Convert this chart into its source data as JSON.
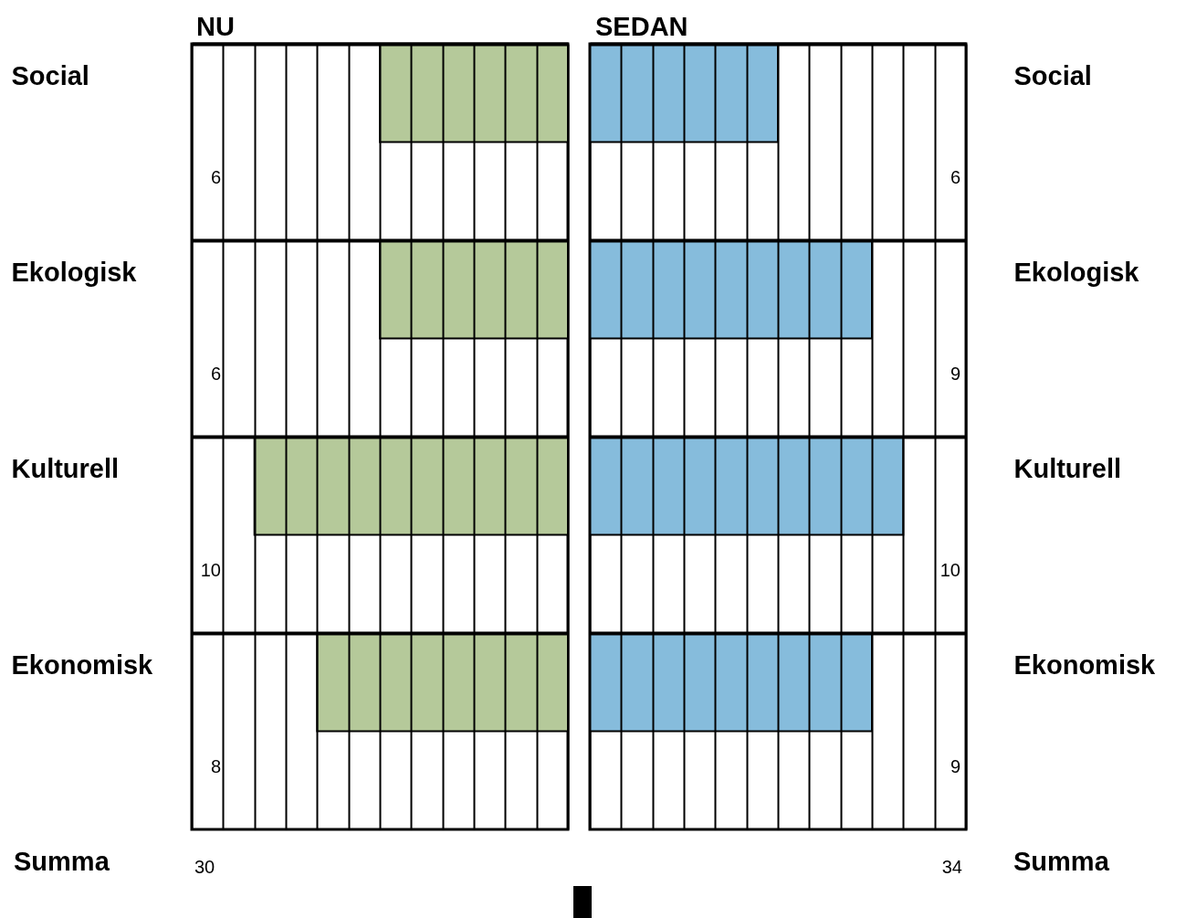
{
  "chart_data": [
    {
      "type": "bar",
      "orientation": "horizontal",
      "title": "NU",
      "categories": [
        "Social",
        "Ekologisk",
        "Kulturell",
        "Ekonomisk"
      ],
      "values": [
        6,
        6,
        10,
        8
      ],
      "color": "#b5c99a",
      "xlim": [
        12,
        0
      ],
      "xticks": [
        {
          "value": 12,
          "label": null
        },
        {
          "value": 11,
          "label": null
        },
        {
          "value": 10,
          "label": null
        },
        {
          "value": 9,
          "label": null
        },
        {
          "value": 8,
          "label": null
        },
        {
          "value": 7,
          "label": null
        },
        {
          "value": 6,
          "label": null
        },
        {
          "value": 5,
          "label": null
        },
        {
          "value": 4,
          "label": null
        },
        {
          "value": 3,
          "label": null
        },
        {
          "value": 2,
          "label": null
        },
        {
          "value": 1,
          "label": null
        },
        {
          "value": 0,
          "label": null
        }
      ],
      "tick_labels": "y",
      "grid": true,
      "data_labels": true,
      "annotations": [
        "Summa",
        "30"
      ]
    },
    {
      "type": "bar",
      "orientation": "horizontal",
      "title": "SEDAN",
      "categories": [
        "Social",
        "Ekologisk",
        "Kulturell",
        "Ekonomisk"
      ],
      "values": [
        6,
        9,
        10,
        9
      ],
      "color": "#86bcdc",
      "xlim": [
        0,
        12
      ],
      "xticks": [
        {
          "value": 0,
          "label": null
        },
        {
          "value": 1,
          "label": null
        },
        {
          "value": 2,
          "label": null
        },
        {
          "value": 3,
          "label": null
        },
        {
          "value": 4,
          "label": null
        },
        {
          "value": 5,
          "label": null
        },
        {
          "value": 6,
          "label": null
        },
        {
          "value": 7,
          "label": null
        },
        {
          "value": 8,
          "label": null
        },
        {
          "value": 9,
          "label": null
        },
        {
          "value": 10,
          "label": null
        },
        {
          "value": 11,
          "label": null
        },
        {
          "value": 12,
          "label": null
        }
      ],
      "tick_labels": "y",
      "grid": true,
      "data_labels": true,
      "annotations": [
        "Summa",
        "34"
      ]
    }
  ]
}
